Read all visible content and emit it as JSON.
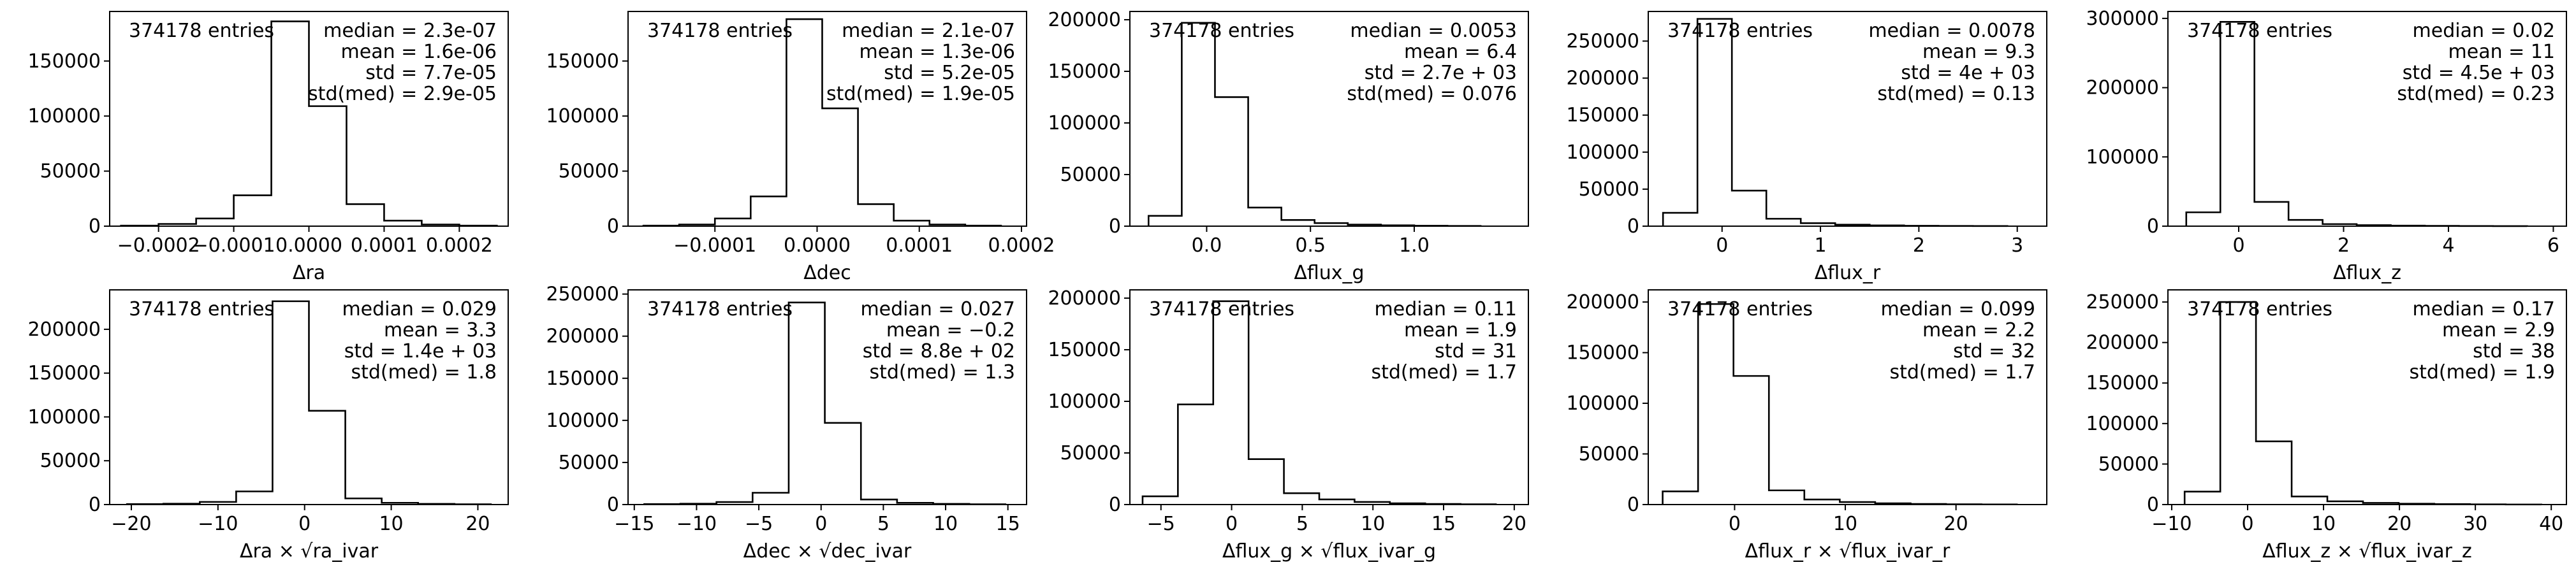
{
  "figure": {
    "chart_data": [
      {
        "type": "histogram",
        "entries_label": "374178 entries",
        "stats": [
          "median = 2.3e-07",
          "mean = 1.6e-06",
          "std = 7.7e-05",
          "std(med) = 2.9e-05"
        ],
        "xlabel": "Δra",
        "xlim": [
          -0.000265,
          0.000265
        ],
        "ylim": [
          0,
          195000
        ],
        "xticks": [
          -0.0002,
          -0.0001,
          0.0,
          0.0001,
          0.0002
        ],
        "xtick_labels": [
          "−0.0002",
          "−0.0001",
          "0.0000",
          "0.0001",
          "0.0002"
        ],
        "yticks": [
          0,
          50000,
          100000,
          150000
        ],
        "ytick_labels": [
          "0",
          "50000",
          "100000",
          "150000"
        ],
        "bin_edges": [
          -0.00025,
          -0.0002,
          -0.00015,
          -0.0001,
          -5e-05,
          0.0,
          5e-05,
          0.0001,
          0.00015,
          0.0002,
          0.00025
        ],
        "counts": [
          500,
          2000,
          7000,
          28000,
          186000,
          109000,
          20000,
          5000,
          1500,
          500
        ]
      },
      {
        "type": "histogram",
        "entries_label": "374178 entries",
        "stats": [
          "median = 2.1e-07",
          "mean = 1.3e-06",
          "std = 5.2e-05",
          "std(med) = 1.9e-05"
        ],
        "xlabel": "Δdec",
        "xlim": [
          -0.000185,
          0.000205
        ],
        "ylim": [
          0,
          195000
        ],
        "xticks": [
          -0.0001,
          0.0,
          0.0001,
          0.0002
        ],
        "xtick_labels": [
          "−0.0001",
          "0.0000",
          "0.0001",
          "0.0002"
        ],
        "yticks": [
          0,
          50000,
          100000,
          150000
        ],
        "ytick_labels": [
          "0",
          "50000",
          "100000",
          "150000"
        ],
        "bin_edges": [
          -0.00017,
          -0.000135,
          -0.0001,
          -6.5e-05,
          -3e-05,
          5e-06,
          4e-05,
          7.5e-05,
          0.00011,
          0.000145,
          0.00018
        ],
        "counts": [
          500,
          1500,
          7000,
          27000,
          188000,
          107000,
          20000,
          5000,
          1500,
          500
        ]
      },
      {
        "type": "histogram",
        "entries_label": "374178 entries",
        "stats": [
          "median = 0.0053",
          "mean = 6.4",
          "std = 2.7e + 03",
          "std(med) = 0.076"
        ],
        "xlabel": "Δflux_g",
        "xlim": [
          -0.37,
          1.55
        ],
        "ylim": [
          0,
          208000
        ],
        "xticks": [
          0.0,
          0.5,
          1.0
        ],
        "xtick_labels": [
          "0.0",
          "0.5",
          "1.0"
        ],
        "yticks": [
          0,
          50000,
          100000,
          150000,
          200000
        ],
        "ytick_labels": [
          "0",
          "50000",
          "100000",
          "150000",
          "200000"
        ],
        "bin_edges": [
          -0.28,
          -0.12,
          0.04,
          0.2,
          0.36,
          0.52,
          0.68,
          0.84,
          1.0,
          1.16,
          1.32
        ],
        "counts": [
          10000,
          197000,
          125000,
          18000,
          6000,
          3000,
          1500,
          800,
          400,
          200
        ]
      },
      {
        "type": "histogram",
        "entries_label": "374178 entries",
        "stats": [
          "median = 0.0078",
          "mean = 9.3",
          "std = 4e + 03",
          "std(med) = 0.13"
        ],
        "xlabel": "Δflux_r",
        "xlim": [
          -0.75,
          3.3
        ],
        "ylim": [
          0,
          290000
        ],
        "xticks": [
          0,
          1,
          2,
          3
        ],
        "xtick_labels": [
          "0",
          "1",
          "2",
          "3"
        ],
        "yticks": [
          0,
          50000,
          100000,
          150000,
          200000,
          250000
        ],
        "ytick_labels": [
          "0",
          "50000",
          "100000",
          "150000",
          "200000",
          "250000"
        ],
        "bin_edges": [
          -0.6,
          -0.25,
          0.1,
          0.45,
          0.8,
          1.15,
          1.5,
          1.85,
          2.2,
          2.55,
          2.9
        ],
        "counts": [
          18000,
          280000,
          48000,
          10000,
          4000,
          2000,
          1000,
          500,
          300,
          200
        ]
      },
      {
        "type": "histogram",
        "entries_label": "374178 entries",
        "stats": [
          "median = 0.02",
          "mean = 11",
          "std = 4.5e + 03",
          "std(med) = 0.23"
        ],
        "xlabel": "Δflux_z",
        "xlim": [
          -1.35,
          6.25
        ],
        "ylim": [
          0,
          310000
        ],
        "xticks": [
          0,
          2,
          4,
          6
        ],
        "xtick_labels": [
          "0",
          "2",
          "4",
          "6"
        ],
        "yticks": [
          0,
          100000,
          200000,
          300000
        ],
        "ytick_labels": [
          "0",
          "100000",
          "200000",
          "300000"
        ],
        "bin_edges": [
          -1.0,
          -0.35,
          0.3,
          0.95,
          1.6,
          2.25,
          2.9,
          3.55,
          4.2,
          4.85,
          5.5
        ],
        "counts": [
          20000,
          295000,
          35000,
          9000,
          3000,
          1500,
          800,
          400,
          200,
          100
        ]
      },
      {
        "type": "histogram",
        "entries_label": "374178 entries",
        "stats": [
          "median = 0.029",
          "mean = 3.3",
          "std = 1.4e + 03",
          "std(med) = 1.8"
        ],
        "xlabel": "Δra × √ra_ivar",
        "xlim": [
          -22.5,
          23.5
        ],
        "ylim": [
          0,
          245000
        ],
        "xticks": [
          -20,
          -10,
          0,
          10,
          20
        ],
        "xtick_labels": [
          "−20",
          "−10",
          "0",
          "10",
          "20"
        ],
        "yticks": [
          0,
          50000,
          100000,
          150000,
          200000
        ],
        "ytick_labels": [
          "0",
          "50000",
          "100000",
          "150000",
          "200000"
        ],
        "bin_edges": [
          -20.5,
          -16.3,
          -12.1,
          -7.9,
          -3.7,
          0.5,
          4.7,
          8.9,
          13.1,
          17.3,
          21.5
        ],
        "counts": [
          500,
          1000,
          3000,
          15000,
          232000,
          107000,
          7000,
          2000,
          800,
          300
        ]
      },
      {
        "type": "histogram",
        "entries_label": "374178 entries",
        "stats": [
          "median = 0.027",
          "mean = −0.2",
          "std = 8.8e + 02",
          "std(med) = 1.3"
        ],
        "xlabel": "Δdec × √dec_ivar",
        "xlim": [
          -15.5,
          16.5
        ],
        "ylim": [
          0,
          255000
        ],
        "xticks": [
          -15,
          -10,
          -5,
          0,
          5,
          10,
          15
        ],
        "xtick_labels": [
          "−15",
          "−10",
          "−5",
          "0",
          "5",
          "10",
          "15"
        ],
        "yticks": [
          0,
          50000,
          100000,
          150000,
          200000,
          250000
        ],
        "ytick_labels": [
          "0",
          "50000",
          "100000",
          "150000",
          "200000",
          "250000"
        ],
        "bin_edges": [
          -14.2,
          -11.3,
          -8.4,
          -5.5,
          -2.6,
          0.3,
          3.2,
          6.1,
          9.0,
          11.9,
          14.8
        ],
        "counts": [
          500,
          1000,
          3000,
          14000,
          240000,
          97000,
          6000,
          2000,
          800,
          300
        ]
      },
      {
        "type": "histogram",
        "entries_label": "374178 entries",
        "stats": [
          "median = 0.11",
          "mean = 1.9",
          "std = 31",
          "std(med) = 1.7"
        ],
        "xlabel": "Δflux_g × √flux_ivar_g",
        "xlim": [
          -7.2,
          21.0
        ],
        "ylim": [
          0,
          208000
        ],
        "xticks": [
          -5,
          0,
          5,
          10,
          15,
          20
        ],
        "xtick_labels": [
          "−5",
          "0",
          "5",
          "10",
          "15",
          "20"
        ],
        "yticks": [
          0,
          50000,
          100000,
          150000,
          200000
        ],
        "ytick_labels": [
          "0",
          "50000",
          "100000",
          "150000",
          "200000"
        ],
        "bin_edges": [
          -6.3,
          -3.8,
          -1.3,
          1.2,
          3.7,
          6.2,
          8.7,
          11.2,
          13.7,
          16.2,
          18.7
        ],
        "counts": [
          8000,
          97000,
          197000,
          44000,
          11000,
          5000,
          2500,
          1200,
          600,
          300
        ]
      },
      {
        "type": "histogram",
        "entries_label": "374178 entries",
        "stats": [
          "median = 0.099",
          "mean = 2.2",
          "std = 32",
          "std(med) = 1.7"
        ],
        "xlabel": "Δflux_r × √flux_ivar_r",
        "xlim": [
          -7.8,
          28.2
        ],
        "ylim": [
          0,
          212000
        ],
        "xticks": [
          0,
          10,
          20
        ],
        "xtick_labels": [
          "0",
          "10",
          "20"
        ],
        "yticks": [
          0,
          50000,
          100000,
          150000,
          200000
        ],
        "ytick_labels": [
          "0",
          "50000",
          "100000",
          "150000",
          "200000"
        ],
        "bin_edges": [
          -6.5,
          -3.3,
          -0.1,
          3.1,
          6.3,
          9.5,
          12.7,
          15.9,
          19.1,
          22.3,
          25.5
        ],
        "counts": [
          13000,
          198000,
          127000,
          14000,
          5000,
          2500,
          1200,
          600,
          300,
          150
        ]
      },
      {
        "type": "histogram",
        "entries_label": "374178 entries",
        "stats": [
          "median = 0.17",
          "mean = 2.9",
          "std = 38",
          "std(med) = 1.9"
        ],
        "xlabel": "Δflux_z × √flux_ivar_z",
        "xlim": [
          -10.5,
          42.0
        ],
        "ylim": [
          0,
          265000
        ],
        "xticks": [
          -10,
          0,
          10,
          20,
          30,
          40
        ],
        "xtick_labels": [
          "−10",
          "0",
          "10",
          "20",
          "30",
          "40"
        ],
        "yticks": [
          0,
          50000,
          100000,
          150000,
          200000,
          250000
        ],
        "ytick_labels": [
          "0",
          "50000",
          "100000",
          "150000",
          "200000",
          "250000"
        ],
        "bin_edges": [
          -8.3,
          -3.6,
          1.1,
          5.8,
          10.5,
          15.2,
          19.9,
          24.6,
          29.3,
          34.0,
          38.7
        ],
        "counts": [
          16000,
          250000,
          78000,
          10000,
          4000,
          2000,
          1000,
          500,
          250,
          100
        ]
      }
    ]
  }
}
